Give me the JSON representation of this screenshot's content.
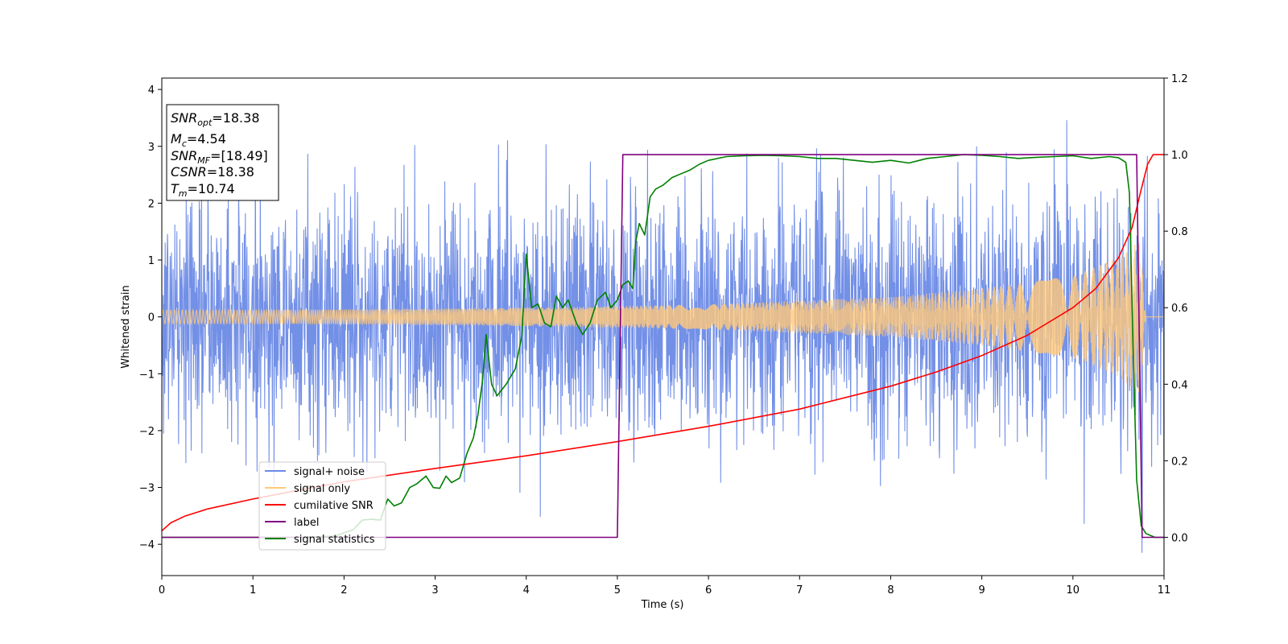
{
  "chart_data": {
    "type": "line",
    "title": "",
    "xlabel": "Time (s)",
    "ylabel": "Whitened strain",
    "y2label": "",
    "xlim": [
      0,
      11
    ],
    "ylim": [
      -4.55,
      4.2
    ],
    "y2lim": [
      -0.1,
      1.2
    ],
    "xticks": [
      "0",
      "1",
      "2",
      "3",
      "4",
      "5",
      "6",
      "7",
      "8",
      "9",
      "10",
      "11"
    ],
    "yticks": [
      "−4",
      "−3",
      "−2",
      "−1",
      "0",
      "1",
      "2",
      "3",
      "4"
    ],
    "y2ticks": [
      "0.0",
      "0.2",
      "0.4",
      "0.6",
      "0.8",
      "1.0",
      "1.2"
    ],
    "grid": false,
    "legend": {
      "placement": "lower-left",
      "entries": [
        {
          "name": "signal+ noise",
          "color": "#6b8ae6"
        },
        {
          "name": "signal only",
          "color": "#ffc87a"
        },
        {
          "name": "cumilative SNR",
          "color": "#ff0000"
        },
        {
          "name": "label",
          "color": "#800080"
        },
        {
          "name": "signal statistics",
          "color": "#008000"
        }
      ]
    },
    "annotation": {
      "lines": [
        {
          "base": "SNR",
          "sub": "opt",
          "value": "=18.38"
        },
        {
          "base": "M",
          "sub": "c",
          "value": "=4.54"
        },
        {
          "base": "SNR",
          "sub": "MF",
          "value": "=[18.49]"
        },
        {
          "base": "CSNR",
          "sub": "",
          "value": "=18.38"
        },
        {
          "base": "T",
          "sub": "m",
          "value": "=10.74"
        }
      ]
    },
    "series": [
      {
        "name": "signal+ noise",
        "axis": "left",
        "color": "#6b8ae6",
        "description_range": [
          -4.15,
          3.8
        ],
        "typical_band": [
          -2.2,
          2.3
        ],
        "x_range": [
          0,
          11
        ]
      },
      {
        "name": "signal only",
        "axis": "left",
        "color": "#ffc87a",
        "x_range": [
          0,
          10.82
        ],
        "envelope": [
          [
            0,
            0.12
          ],
          [
            2,
            0.13
          ],
          [
            4,
            0.16
          ],
          [
            6,
            0.22
          ],
          [
            8,
            0.35
          ],
          [
            9,
            0.5
          ],
          [
            10,
            0.72
          ],
          [
            10.5,
            1.05
          ],
          [
            10.74,
            1.35
          ],
          [
            10.8,
            0.0
          ],
          [
            11,
            0.0
          ]
        ]
      },
      {
        "name": "cumilative SNR",
        "axis": "right",
        "color": "#ff0000",
        "points": [
          [
            0,
            0.017
          ],
          [
            0.1,
            0.038
          ],
          [
            0.25,
            0.055
          ],
          [
            0.5,
            0.074
          ],
          [
            1,
            0.1
          ],
          [
            1.5,
            0.123
          ],
          [
            2,
            0.145
          ],
          [
            3,
            0.18
          ],
          [
            4,
            0.213
          ],
          [
            5,
            0.25
          ],
          [
            6,
            0.29
          ],
          [
            7,
            0.335
          ],
          [
            8,
            0.395
          ],
          [
            8.5,
            0.432
          ],
          [
            9,
            0.475
          ],
          [
            9.5,
            0.528
          ],
          [
            10,
            0.6
          ],
          [
            10.25,
            0.65
          ],
          [
            10.5,
            0.73
          ],
          [
            10.65,
            0.81
          ],
          [
            10.74,
            0.9
          ],
          [
            10.82,
            0.975
          ],
          [
            10.88,
            1.0
          ],
          [
            11,
            1.0
          ]
        ]
      },
      {
        "name": "label",
        "axis": "right",
        "color": "#800080",
        "points": [
          [
            0,
            0.0
          ],
          [
            5.0,
            0.0
          ],
          [
            5.06,
            1.0
          ],
          [
            10.7,
            1.0
          ],
          [
            10.76,
            0.0
          ],
          [
            11,
            0.0
          ]
        ]
      },
      {
        "name": "signal statistics",
        "axis": "right",
        "color": "#008000",
        "points": [
          [
            0,
            0.0
          ],
          [
            1.0,
            0.0
          ],
          [
            1.5,
            0.0
          ],
          [
            1.9,
            0.003
          ],
          [
            2.1,
            0.02
          ],
          [
            2.2,
            0.045
          ],
          [
            2.3,
            0.047
          ],
          [
            2.4,
            0.045
          ],
          [
            2.48,
            0.1
          ],
          [
            2.55,
            0.082
          ],
          [
            2.63,
            0.09
          ],
          [
            2.72,
            0.13
          ],
          [
            2.8,
            0.14
          ],
          [
            2.9,
            0.16
          ],
          [
            2.98,
            0.13
          ],
          [
            3.05,
            0.128
          ],
          [
            3.12,
            0.16
          ],
          [
            3.18,
            0.143
          ],
          [
            3.27,
            0.155
          ],
          [
            3.35,
            0.22
          ],
          [
            3.42,
            0.26
          ],
          [
            3.47,
            0.32
          ],
          [
            3.52,
            0.41
          ],
          [
            3.56,
            0.53
          ],
          [
            3.62,
            0.4
          ],
          [
            3.68,
            0.37
          ],
          [
            3.78,
            0.4
          ],
          [
            3.88,
            0.44
          ],
          [
            3.95,
            0.525
          ],
          [
            4.0,
            0.74
          ],
          [
            4.06,
            0.6
          ],
          [
            4.13,
            0.61
          ],
          [
            4.2,
            0.56
          ],
          [
            4.27,
            0.55
          ],
          [
            4.33,
            0.63
          ],
          [
            4.4,
            0.6
          ],
          [
            4.46,
            0.62
          ],
          [
            4.55,
            0.56
          ],
          [
            4.62,
            0.53
          ],
          [
            4.7,
            0.56
          ],
          [
            4.78,
            0.62
          ],
          [
            4.87,
            0.64
          ],
          [
            4.93,
            0.6
          ],
          [
            5.0,
            0.62
          ],
          [
            5.06,
            0.66
          ],
          [
            5.12,
            0.67
          ],
          [
            5.17,
            0.65
          ],
          [
            5.2,
            0.77
          ],
          [
            5.24,
            0.82
          ],
          [
            5.3,
            0.79
          ],
          [
            5.36,
            0.89
          ],
          [
            5.42,
            0.91
          ],
          [
            5.5,
            0.92
          ],
          [
            5.6,
            0.94
          ],
          [
            5.7,
            0.95
          ],
          [
            5.8,
            0.96
          ],
          [
            5.9,
            0.975
          ],
          [
            6.0,
            0.985
          ],
          [
            6.2,
            0.995
          ],
          [
            6.4,
            0.997
          ],
          [
            6.6,
            0.998
          ],
          [
            6.8,
            0.997
          ],
          [
            7.0,
            0.995
          ],
          [
            7.2,
            0.99
          ],
          [
            7.4,
            0.99
          ],
          [
            7.6,
            0.985
          ],
          [
            7.8,
            0.98
          ],
          [
            8.0,
            0.985
          ],
          [
            8.2,
            0.978
          ],
          [
            8.4,
            0.99
          ],
          [
            8.6,
            0.995
          ],
          [
            8.8,
            1.0
          ],
          [
            9.0,
            0.998
          ],
          [
            9.2,
            0.995
          ],
          [
            9.4,
            0.99
          ],
          [
            9.6,
            0.993
          ],
          [
            9.8,
            0.995
          ],
          [
            10.0,
            0.997
          ],
          [
            10.2,
            0.99
          ],
          [
            10.4,
            0.995
          ],
          [
            10.5,
            0.992
          ],
          [
            10.58,
            0.98
          ],
          [
            10.62,
            0.9
          ],
          [
            10.66,
            0.5
          ],
          [
            10.7,
            0.15
          ],
          [
            10.75,
            0.03
          ],
          [
            10.8,
            0.01
          ],
          [
            10.9,
            0.0
          ],
          [
            11.0,
            0.0
          ]
        ]
      }
    ]
  }
}
